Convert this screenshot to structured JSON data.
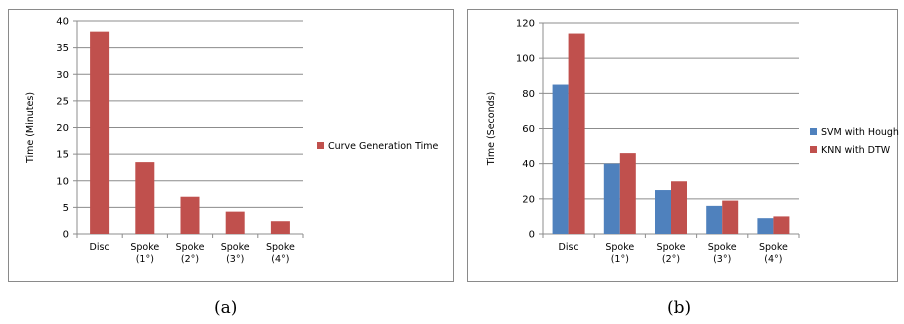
{
  "charts": [
    {
      "type": "bar",
      "categories": [
        [
          "Disc"
        ],
        [
          "Spoke",
          "(1°)"
        ],
        [
          "Spoke",
          "(2°)"
        ],
        [
          "Spoke",
          "(3°)"
        ],
        [
          "Spoke",
          "(4°)"
        ]
      ],
      "series": [
        {
          "name": "Curve Generation Time",
          "color": "#c0504d",
          "values": [
            38,
            13.5,
            7,
            4.2,
            2.4
          ]
        }
      ],
      "ylabel": "Time (Minutes)",
      "ylim": [
        0,
        40
      ],
      "yticks": [
        0,
        5,
        10,
        15,
        20,
        25,
        30,
        35,
        40
      ],
      "grid": true,
      "legend": "right"
    },
    {
      "type": "bar",
      "categories": [
        [
          "Disc"
        ],
        [
          "Spoke",
          "(1°)"
        ],
        [
          "Spoke",
          "(2°)"
        ],
        [
          "Spoke",
          "(3°)"
        ],
        [
          "Spoke",
          "(4°)"
        ]
      ],
      "series": [
        {
          "name": "SVM with Hough",
          "color": "#4f81bd",
          "values": [
            85,
            40,
            25,
            16,
            9
          ]
        },
        {
          "name": "KNN with DTW",
          "color": "#c0504d",
          "values": [
            114,
            46,
            30,
            19,
            10
          ]
        }
      ],
      "ylabel": "Time (Seconds)",
      "ylim": [
        0,
        120
      ],
      "yticks": [
        0,
        20,
        40,
        60,
        80,
        100,
        120
      ],
      "grid": true,
      "legend": "right"
    }
  ],
  "captions": {
    "a": "(a)",
    "b": "(b)"
  }
}
